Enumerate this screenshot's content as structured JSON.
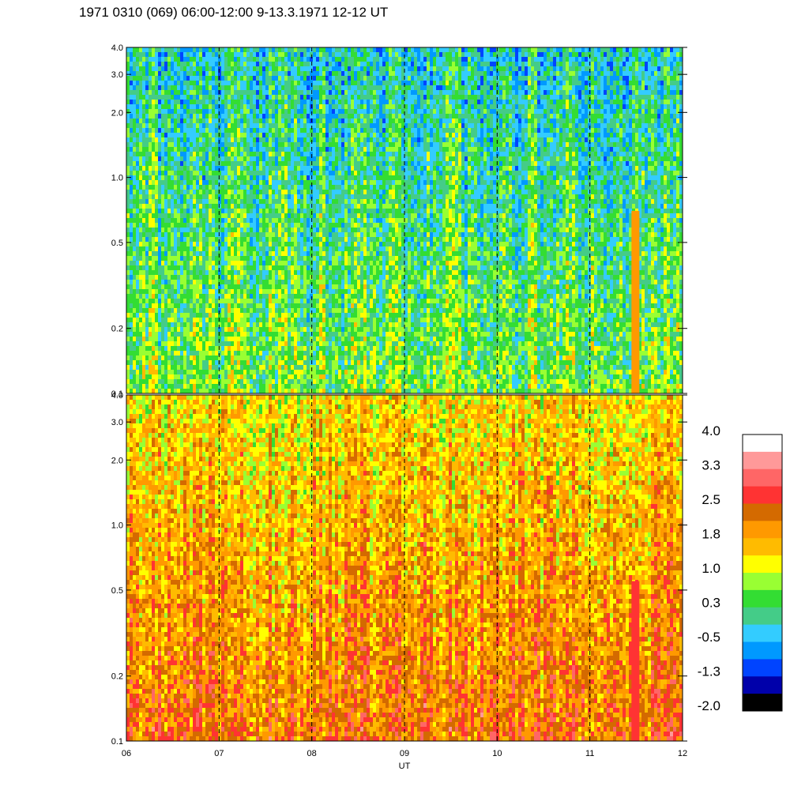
{
  "title": "1971 0310 (069) 06:00-12:00 9-13.3.1971  12-12 UT",
  "chart_data": {
    "type": "heatmap",
    "title": "1971 0310 (069) 06:00-12:00 9-13.3.1971  12-12 UT",
    "xlabel": "UT",
    "ylabel": "",
    "x_range": [
      "06",
      "12"
    ],
    "x_ticks": [
      "06",
      "07",
      "08",
      "09",
      "10",
      "11",
      "12"
    ],
    "y_scale": "log",
    "y_range": [
      0.1,
      4.0
    ],
    "y_ticks": [
      "0.1",
      "0.2",
      "0.5",
      "1.0",
      "2.0",
      "3.0",
      "4.0"
    ],
    "panels": [
      {
        "name": "upper",
        "dominant_level_range": [
          -0.5,
          1.0
        ],
        "notes_visible": "mostly green/cyan with scattered blue; red-orange streak near 11:30"
      },
      {
        "name": "lower",
        "dominant_level_range": [
          1.0,
          2.5
        ],
        "notes_visible": "mostly orange/yellow, brighter red streak near 11:30"
      }
    ],
    "grid_verticals": [
      "07",
      "08",
      "09",
      "10",
      "11"
    ],
    "colorbar": {
      "labels": [
        "4.0",
        "3.3",
        "2.5",
        "1.8",
        "1.0",
        "0.3",
        "-0.5",
        "-1.3",
        "-2.0"
      ],
      "colors": [
        "#ffffff",
        "#ff9999",
        "#ff6666",
        "#ff3333",
        "#d46a00",
        "#ff9900",
        "#ffbb00",
        "#ffff00",
        "#99ff33",
        "#33dd33",
        "#44cc88",
        "#33ccff",
        "#0099ff",
        "#0044ff",
        "#0000aa",
        "#000000"
      ]
    }
  }
}
